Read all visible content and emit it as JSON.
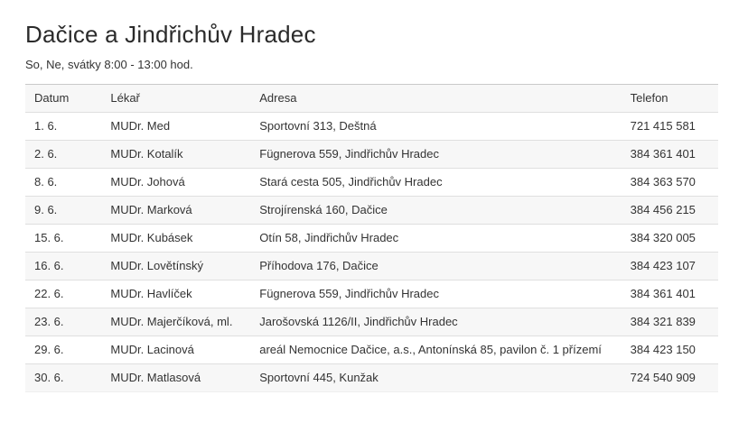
{
  "page": {
    "title": "Dačice a Jindřichův Hradec",
    "subtitle": "So, Ne, svátky 8:00 - 13:00 hod."
  },
  "table": {
    "columns": [
      "Datum",
      "Lékař",
      "Adresa",
      "Telefon"
    ],
    "rows": [
      [
        "1. 6.",
        "MUDr. Med",
        "Sportovní 313, Deštná",
        "721 415 581"
      ],
      [
        "2. 6.",
        "MUDr. Kotalík",
        "Fügnerova 559, Jindřichův Hradec",
        "384 361 401"
      ],
      [
        "8. 6.",
        "MUDr. Johová",
        "Stará cesta 505, Jindřichův Hradec",
        "384 363 570"
      ],
      [
        "9. 6.",
        "MUDr. Marková",
        "Strojírenská 160, Dačice",
        "384 456 215"
      ],
      [
        "15. 6.",
        "MUDr. Kubásek",
        "Otín 58, Jindřichův Hradec",
        "384 320 005"
      ],
      [
        "16. 6.",
        "MUDr. Lovětínský",
        "Příhodova 176, Dačice",
        "384 423 107"
      ],
      [
        "22. 6.",
        "MUDr. Havlíček",
        "Fügnerova 559, Jindřichův Hradec",
        "384 361 401"
      ],
      [
        "23. 6.",
        "MUDr. Majerčíková, ml.",
        "Jarošovská 1126/II, Jindřichův Hradec",
        "384 321 839"
      ],
      [
        "29. 6.",
        "MUDr. Lacinová",
        "areál Nemocnice Dačice, a.s., Antonínská 85, pavilon č. 1 přízemí",
        "384 423 150"
      ],
      [
        "30. 6.",
        "MUDr. Matlasová",
        "Sportovní 445, Kunžak",
        "724 540 909"
      ]
    ]
  },
  "colors": {
    "text": "#333333",
    "title": "#2b2b2b",
    "stripe": "#f7f7f7",
    "row_border": "#dfdfdf",
    "table_top_border": "#c9c9c9",
    "background": "#ffffff"
  }
}
